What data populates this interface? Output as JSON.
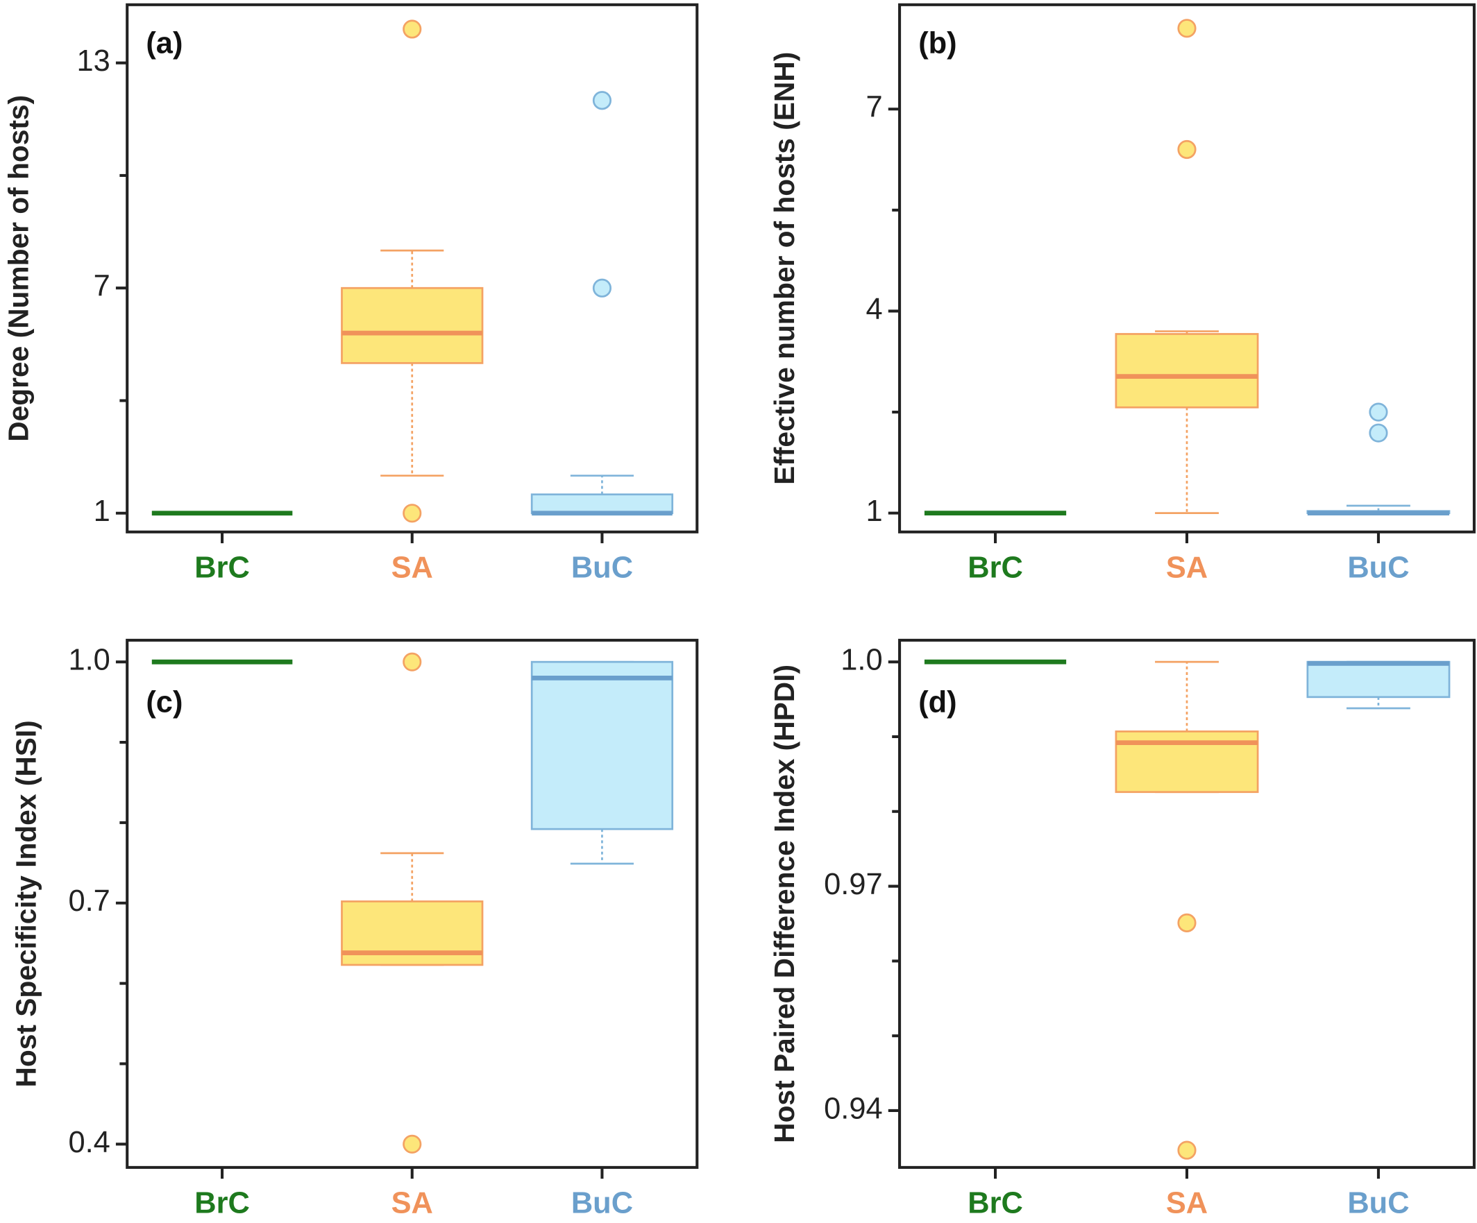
{
  "chart_data": [
    {
      "type": "box",
      "label": "(a)",
      "ylabel": "Degree (Number of hosts)",
      "categories": [
        "BrC",
        "SA",
        "BuC"
      ],
      "fill_colors": [
        "#1e7a1e",
        "#fde67a",
        "#c4ecfa"
      ],
      "edge_colors": [
        "#1e7a1e",
        "#f4a263",
        "#7fb4da"
      ],
      "median_colors": [
        "#1e7a1e",
        "#f0925a",
        "#6a9fcc"
      ],
      "boxes": [
        {
          "whislo": 1,
          "q1": 1,
          "med": 1,
          "q3": 1,
          "whishi": 1,
          "fliers": []
        },
        {
          "whislo": 2,
          "q1": 5,
          "med": 5.8,
          "q3": 7,
          "whishi": 8,
          "fliers": [
            13.9,
            1
          ]
        },
        {
          "whislo": 1,
          "q1": 1,
          "med": 1,
          "q3": 1.5,
          "whishi": 2,
          "fliers": [
            7,
            12
          ]
        }
      ],
      "ylim": [
        0.5,
        14.55
      ],
      "yticks": [
        1,
        7,
        13
      ],
      "yticks_minor": [
        4,
        10
      ]
    },
    {
      "type": "box",
      "label": "(b)",
      "ylabel": "Effective number of hosts (ENH)",
      "categories": [
        "BrC",
        "SA",
        "BuC"
      ],
      "fill_colors": [
        "#1e7a1e",
        "#fde67a",
        "#c4ecfa"
      ],
      "edge_colors": [
        "#1e7a1e",
        "#f4a263",
        "#7fb4da"
      ],
      "median_colors": [
        "#1e7a1e",
        "#f0925a",
        "#6a9fcc"
      ],
      "boxes": [
        {
          "whislo": 1,
          "q1": 1,
          "med": 1,
          "q3": 1,
          "whishi": 1,
          "fliers": []
        },
        {
          "whislo": 1,
          "q1": 2.57,
          "med": 3.03,
          "q3": 3.66,
          "whishi": 3.7,
          "fliers": [
            8.2,
            6.4
          ]
        },
        {
          "whislo": 1,
          "q1": 1,
          "med": 1,
          "q3": 1.03,
          "whishi": 1.11,
          "fliers": [
            2.5,
            2.19
          ]
        }
      ],
      "ylim": [
        0.72,
        8.55
      ],
      "yticks": [
        1,
        4,
        7
      ],
      "yticks_minor": [
        2.5,
        5.5
      ]
    },
    {
      "type": "box",
      "label": "(c)",
      "ylabel": "Host Specificity Index (HSI)",
      "categories": [
        "BrC",
        "SA",
        "BuC"
      ],
      "fill_colors": [
        "#1e7a1e",
        "#fde67a",
        "#c4ecfa"
      ],
      "edge_colors": [
        "#1e7a1e",
        "#f4a263",
        "#7fb4da"
      ],
      "median_colors": [
        "#1e7a1e",
        "#f0925a",
        "#6a9fcc"
      ],
      "boxes": [
        {
          "whislo": 1,
          "q1": 1,
          "med": 1,
          "q3": 1,
          "whishi": 1,
          "fliers": []
        },
        {
          "whislo": 0.623,
          "q1": 0.623,
          "med": 0.638,
          "q3": 0.702,
          "whishi": 0.762,
          "fliers": [
            0.4,
            1
          ]
        },
        {
          "whislo": 0.749,
          "q1": 0.792,
          "med": 0.98,
          "q3": 1,
          "whishi": 1,
          "fliers": []
        }
      ],
      "ylim": [
        0.371,
        1.027
      ],
      "yticks": [
        {
          "value": 0.4,
          "label": "0.4"
        },
        {
          "value": 0.7,
          "label": "0.7"
        },
        {
          "value": 1,
          "label": "1.0"
        }
      ],
      "yticks_minor": [
        0.5,
        0.6,
        0.8,
        0.9
      ]
    },
    {
      "type": "box",
      "label": "(d)",
      "ylabel": "Host Paired Difference Index (HPDI)",
      "categories": [
        "BrC",
        "SA",
        "BuC"
      ],
      "fill_colors": [
        "#1e7a1e",
        "#fde67a",
        "#c4ecfa"
      ],
      "edge_colors": [
        "#1e7a1e",
        "#f4a263",
        "#7fb4da"
      ],
      "median_colors": [
        "#1e7a1e",
        "#f0925a",
        "#6a9fcc"
      ],
      "boxes": [
        {
          "whislo": 1,
          "q1": 1,
          "med": 1,
          "q3": 1,
          "whishi": 1,
          "fliers": []
        },
        {
          "whislo": 0.9826,
          "q1": 0.9826,
          "med": 0.9892,
          "q3": 0.9907,
          "whishi": 1,
          "fliers": [
            0.9651,
            0.9347
          ]
        },
        {
          "whislo": 0.9938,
          "q1": 0.9953,
          "med": 0.9998,
          "q3": 1,
          "whishi": 1,
          "fliers": []
        }
      ],
      "ylim": [
        0.9324,
        1.0029
      ],
      "yticks": [
        0.94,
        0.97,
        {
          "value": 1,
          "label": "1.0"
        }
      ],
      "yticks_minor": [
        0.95,
        0.96,
        0.98,
        0.99
      ]
    }
  ]
}
